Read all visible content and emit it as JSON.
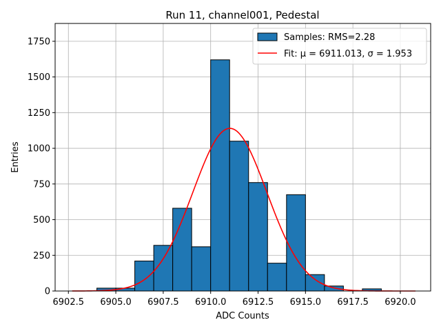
{
  "chart_data": {
    "type": "bar",
    "title": "Run 11, channel001, Pedestal",
    "xlabel": "ADC Counts",
    "ylabel": "Entries",
    "xlim": [
      6901.8,
      6921.6
    ],
    "ylim": [
      0,
      1875
    ],
    "grid": true,
    "legend_position": "top-right",
    "x_ticks": [
      6902.5,
      6905.0,
      6907.5,
      6910.0,
      6912.5,
      6915.0,
      6917.5,
      6920.0
    ],
    "x_tick_labels": [
      "6902.5",
      "6905.0",
      "6907.5",
      "6910.0",
      "6912.5",
      "6915.0",
      "6917.5",
      "6920.0"
    ],
    "y_ticks": [
      0,
      250,
      500,
      750,
      1000,
      1250,
      1500,
      1750
    ],
    "y_tick_labels": [
      "0",
      "250",
      "500",
      "750",
      "1000",
      "1250",
      "1500",
      "1750"
    ],
    "bin_edges": [
      6904,
      6905,
      6906,
      6907,
      6908,
      6909,
      6910,
      6911,
      6912,
      6913,
      6914,
      6915,
      6916,
      6917,
      6918,
      6919
    ],
    "series": [
      {
        "name": "Samples: RMS=2.28",
        "kind": "histogram",
        "color": "#1f77b4",
        "edge_color": "#000000",
        "values": [
          20,
          20,
          210,
          320,
          580,
          310,
          1620,
          1050,
          760,
          195,
          675,
          115,
          35,
          0,
          15
        ]
      },
      {
        "name": "Fit: μ = 6911.013, σ = 1.953",
        "kind": "gaussian-fit",
        "color": "#ff0000",
        "amplitude": 1140,
        "mu": 6911.013,
        "sigma": 1.953,
        "x_range": [
          6902.7,
          6920.8
        ]
      }
    ],
    "legend": [
      {
        "label": "Samples: RMS=2.28",
        "style": "patch",
        "color": "#1f77b4"
      },
      {
        "label": "Fit: μ = 6911.013, σ = 1.953",
        "style": "line",
        "color": "#ff0000"
      }
    ]
  }
}
